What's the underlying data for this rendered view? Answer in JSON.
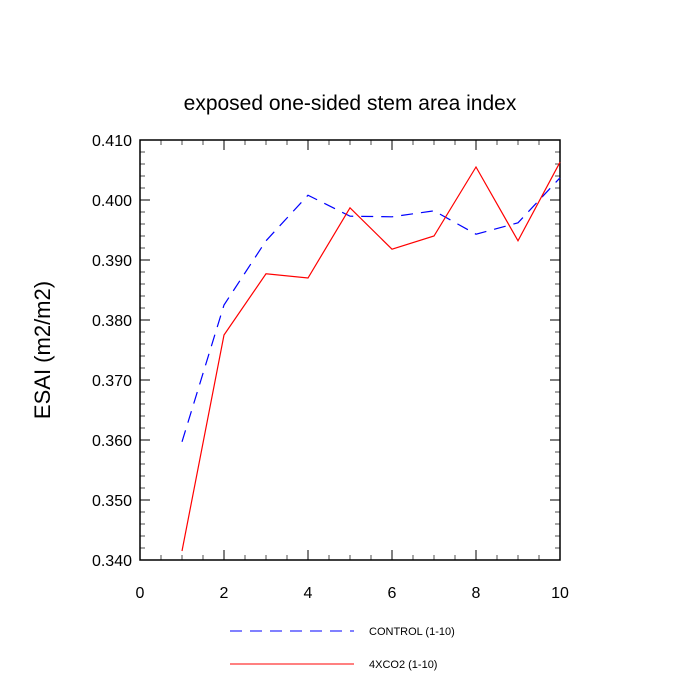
{
  "chart_data": {
    "type": "line",
    "title": "exposed one-sided stem area index",
    "xlabel": "",
    "ylabel": "ESAI  (m2/m2)",
    "xlim": [
      0,
      10
    ],
    "ylim": [
      0.34,
      0.41
    ],
    "xticks": [
      "0",
      "2",
      "4",
      "6",
      "8",
      "10"
    ],
    "yticks": [
      "0.340",
      "0.350",
      "0.360",
      "0.370",
      "0.380",
      "0.390",
      "0.400",
      "0.410"
    ],
    "grid": false,
    "legend_position": "bottom",
    "x": [
      1,
      2,
      3,
      4,
      5,
      6,
      7,
      8,
      9,
      10
    ],
    "series": [
      {
        "name": "CONTROL (1-10)",
        "color": "#0000ff",
        "dash": "dashed",
        "values": [
          0.3597,
          0.3825,
          0.3932,
          0.4008,
          0.3973,
          0.3972,
          0.3982,
          0.3943,
          0.3962,
          0.4037
        ]
      },
      {
        "name": "4XCO2 (1-10)",
        "color": "#ff0000",
        "dash": "solid",
        "values": [
          0.3415,
          0.3775,
          0.3877,
          0.387,
          0.3987,
          0.3918,
          0.394,
          0.4055,
          0.3932,
          0.4063
        ]
      }
    ]
  }
}
